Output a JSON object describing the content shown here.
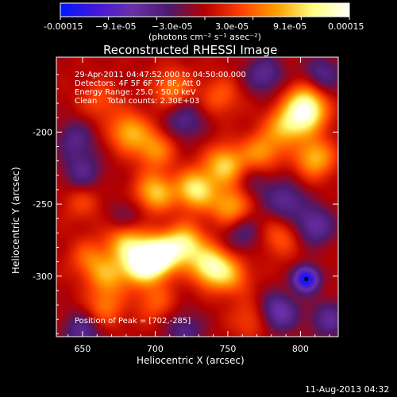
{
  "chart_data": {
    "type": "heatmap",
    "title": "Reconstructed RHESSI Image",
    "xlabel": "Heliocentric X (arcsec)",
    "ylabel": "Heliocentric Y (arcsec)",
    "xlim": [
      632,
      826
    ],
    "ylim": [
      -342,
      -148
    ],
    "x_ticks": [
      "650",
      "700",
      "750",
      "800"
    ],
    "x_tick_values": [
      650,
      700,
      750,
      800
    ],
    "y_ticks": [
      "-200",
      "-250",
      "-300"
    ],
    "y_tick_values": [
      -200,
      -250,
      -300
    ],
    "colorbar": {
      "range": [
        -0.00015,
        0.00015
      ],
      "tick_labels": [
        "-0.00015",
        "−9.1e-05",
        "−3.0e-05",
        "3.0e-05",
        "9.1e-05",
        "0.00015"
      ],
      "unit_text": "(photons cm⁻² s⁻¹ asec⁻²)",
      "colors": [
        "#0018ff",
        "#4418d8",
        "#6a30a8",
        "#4b1a6e",
        "#b40000",
        "#ff4000",
        "#ffa000",
        "#ffff80",
        "#ffffff"
      ]
    },
    "info_lines": [
      "29-Apr-2011 04:47:52.000 to 04:50:00.000",
      "Detectors: 4F 5F 6F 7F 8F, Att 0",
      "Energy Range: 25.0 - 50.0 keV",
      "Clean    Total counts: 2.30E+03"
    ],
    "peak_text": "Position of Peak = [702,-285]",
    "peak": {
      "x": 702,
      "y": -285
    },
    "minimum": {
      "x": 804,
      "y": -302
    },
    "sources": [
      {
        "x": 702,
        "y": -286,
        "v": 0.00015
      },
      {
        "x": 690,
        "y": -292,
        "v": 0.00012
      },
      {
        "x": 720,
        "y": -278,
        "v": 0.00011
      },
      {
        "x": 738,
        "y": -293,
        "v": 0.000115
      },
      {
        "x": 680,
        "y": -276,
        "v": 8.5e-05
      },
      {
        "x": 668,
        "y": -300,
        "v": 6.5e-05
      },
      {
        "x": 655,
        "y": -288,
        "v": 5e-05
      },
      {
        "x": 665,
        "y": -322,
        "v": 5.5e-05
      },
      {
        "x": 700,
        "y": -318,
        "v": 4.5e-05
      },
      {
        "x": 752,
        "y": -300,
        "v": 6e-05
      },
      {
        "x": 728,
        "y": -240,
        "v": 0.00011
      },
      {
        "x": 700,
        "y": -242,
        "v": 9e-05
      },
      {
        "x": 748,
        "y": -223,
        "v": 9.5e-05
      },
      {
        "x": 752,
        "y": -252,
        "v": 8e-05
      },
      {
        "x": 682,
        "y": -200,
        "v": 8e-05
      },
      {
        "x": 700,
        "y": -212,
        "v": 6.5e-05
      },
      {
        "x": 790,
        "y": -196,
        "v": 8.5e-05
      },
      {
        "x": 805,
        "y": -188,
        "v": 9e-05
      },
      {
        "x": 810,
        "y": -218,
        "v": 8.5e-05
      },
      {
        "x": 773,
        "y": -214,
        "v": 7e-05
      },
      {
        "x": 803,
        "y": -178,
        "v": 7.5e-05
      },
      {
        "x": 712,
        "y": -170,
        "v": 6e-05
      },
      {
        "x": 662,
        "y": -178,
        "v": 4e-05
      },
      {
        "x": 786,
        "y": -273,
        "v": 4.5e-05
      },
      {
        "x": 766,
        "y": -330,
        "v": 4e-05
      },
      {
        "x": 650,
        "y": -248,
        "v": 3.5e-05
      },
      {
        "x": 745,
        "y": -175,
        "v": 4.5e-05
      },
      {
        "x": 804,
        "y": -302,
        "v": -0.00015
      },
      {
        "x": 785,
        "y": -325,
        "v": -8e-05
      },
      {
        "x": 810,
        "y": -265,
        "v": -7e-05
      },
      {
        "x": 790,
        "y": -248,
        "v": -6e-05
      },
      {
        "x": 650,
        "y": -228,
        "v": -5.5e-05
      },
      {
        "x": 645,
        "y": -205,
        "v": -5e-05
      },
      {
        "x": 720,
        "y": -192,
        "v": -5.5e-05
      },
      {
        "x": 775,
        "y": -160,
        "v": -6e-05
      },
      {
        "x": 815,
        "y": -160,
        "v": -5.5e-05
      },
      {
        "x": 720,
        "y": -338,
        "v": -5e-05
      },
      {
        "x": 650,
        "y": -338,
        "v": -6e-05
      },
      {
        "x": 760,
        "y": -270,
        "v": -4.5e-05
      },
      {
        "x": 820,
        "y": -330,
        "v": -6e-05
      },
      {
        "x": 680,
        "y": -260,
        "v": -3.5e-05
      },
      {
        "x": 770,
        "y": -235,
        "v": -3e-05
      }
    ]
  },
  "timestamp": "11-Aug-2013 04:32"
}
